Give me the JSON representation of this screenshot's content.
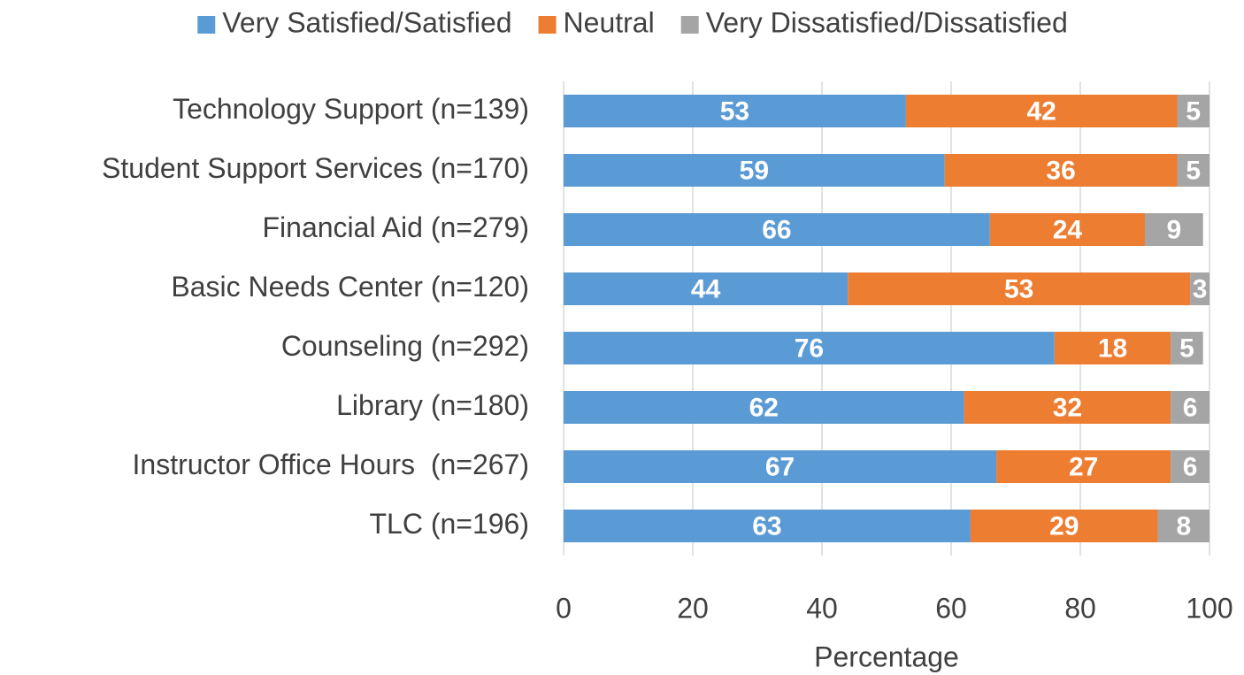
{
  "chart_data": {
    "type": "bar",
    "orientation": "horizontal",
    "stacked": true,
    "x_label": "Percentage",
    "categories": [
      "Technology Support (n=139)",
      "Student Support Services (n=170)",
      "Financial Aid (n=279)",
      "Basic Needs Center (n=120)",
      "Counseling (n=292)",
      "Library (n=180)",
      "Instructor Office Hours  (n=267)",
      "TLC (n=196)"
    ],
    "series": [
      {
        "name": "Very Satisfied/Satisfied",
        "color": "#5b9bd5",
        "values": [
          53,
          59,
          66,
          44,
          76,
          62,
          67,
          63
        ]
      },
      {
        "name": "Neutral",
        "color": "#ed7d31",
        "values": [
          42,
          36,
          24,
          53,
          18,
          32,
          27,
          29
        ]
      },
      {
        "name": "Very Dissatisfied/Dissatisfied",
        "color": "#a5a5a5",
        "values": [
          5,
          5,
          9,
          3,
          5,
          6,
          6,
          8
        ]
      }
    ],
    "xlim": [
      0,
      100
    ],
    "xticks": [
      0,
      20,
      40,
      60,
      80,
      100
    ],
    "grid": true,
    "legend": "top"
  }
}
